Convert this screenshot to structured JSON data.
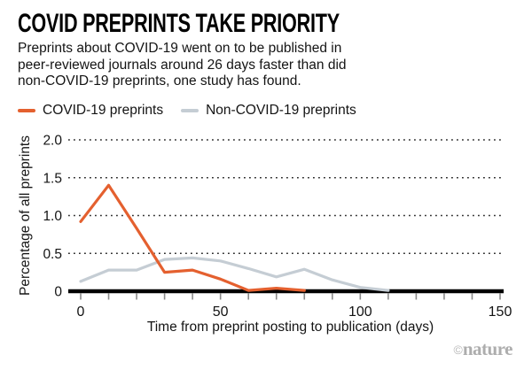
{
  "header": {
    "title": "COVID PREPRINTS TAKE PRIORITY",
    "subtitle_lines": [
      "Preprints about COVID-19 went on to be published in",
      "peer-reviewed journals around 26 days faster than did",
      "non-COVID-19 preprints, one study has found."
    ]
  },
  "legend": {
    "position": "top",
    "items": [
      {
        "label": "COVID-19 preprints",
        "color": "#E4602F"
      },
      {
        "label": "Non-COVID-19 preprints",
        "color": "#C5CDD4"
      }
    ]
  },
  "chart_data": {
    "type": "line",
    "title": "COVID PREPRINTS TAKE PRIORITY",
    "xlabel": "Time from preprint posting to publication (days)",
    "ylabel": "Percentage of all preprints",
    "xlim": [
      0,
      150
    ],
    "ylim": [
      0,
      2.0
    ],
    "grid": "horizontal-dotted",
    "x_tick_labels": [
      "0",
      "50",
      "100",
      "150"
    ],
    "x_tick_values": [
      0,
      50,
      100,
      150
    ],
    "x_minor_tick_step": 10,
    "y_tick_labels": [
      "0",
      "0.5",
      "1.0",
      "1.5",
      "2.0"
    ],
    "y_tick_values": [
      0,
      0.5,
      1.0,
      1.5,
      2.0
    ],
    "series": [
      {
        "name": "Non-COVID-19 preprints",
        "color": "#C5CDD4",
        "x": [
          0,
          10,
          20,
          30,
          40,
          50,
          60,
          70,
          80,
          90,
          100,
          110
        ],
        "y": [
          0.13,
          0.28,
          0.28,
          0.42,
          0.44,
          0.4,
          0.3,
          0.19,
          0.29,
          0.15,
          0.05,
          0.01
        ]
      },
      {
        "name": "COVID-19 preprints",
        "color": "#E4602F",
        "x": [
          0,
          10,
          20,
          30,
          40,
          50,
          60,
          70,
          80
        ],
        "y": [
          0.92,
          1.4,
          0.83,
          0.25,
          0.28,
          0.16,
          0.01,
          0.04,
          0.01
        ]
      }
    ]
  },
  "footer": {
    "credit_symbol": "©",
    "credit": "nature"
  },
  "colors": {
    "axis": "#000000",
    "tick": "#8a8a8a",
    "grid_dots": "#2b2b2b",
    "text": "#141414"
  }
}
